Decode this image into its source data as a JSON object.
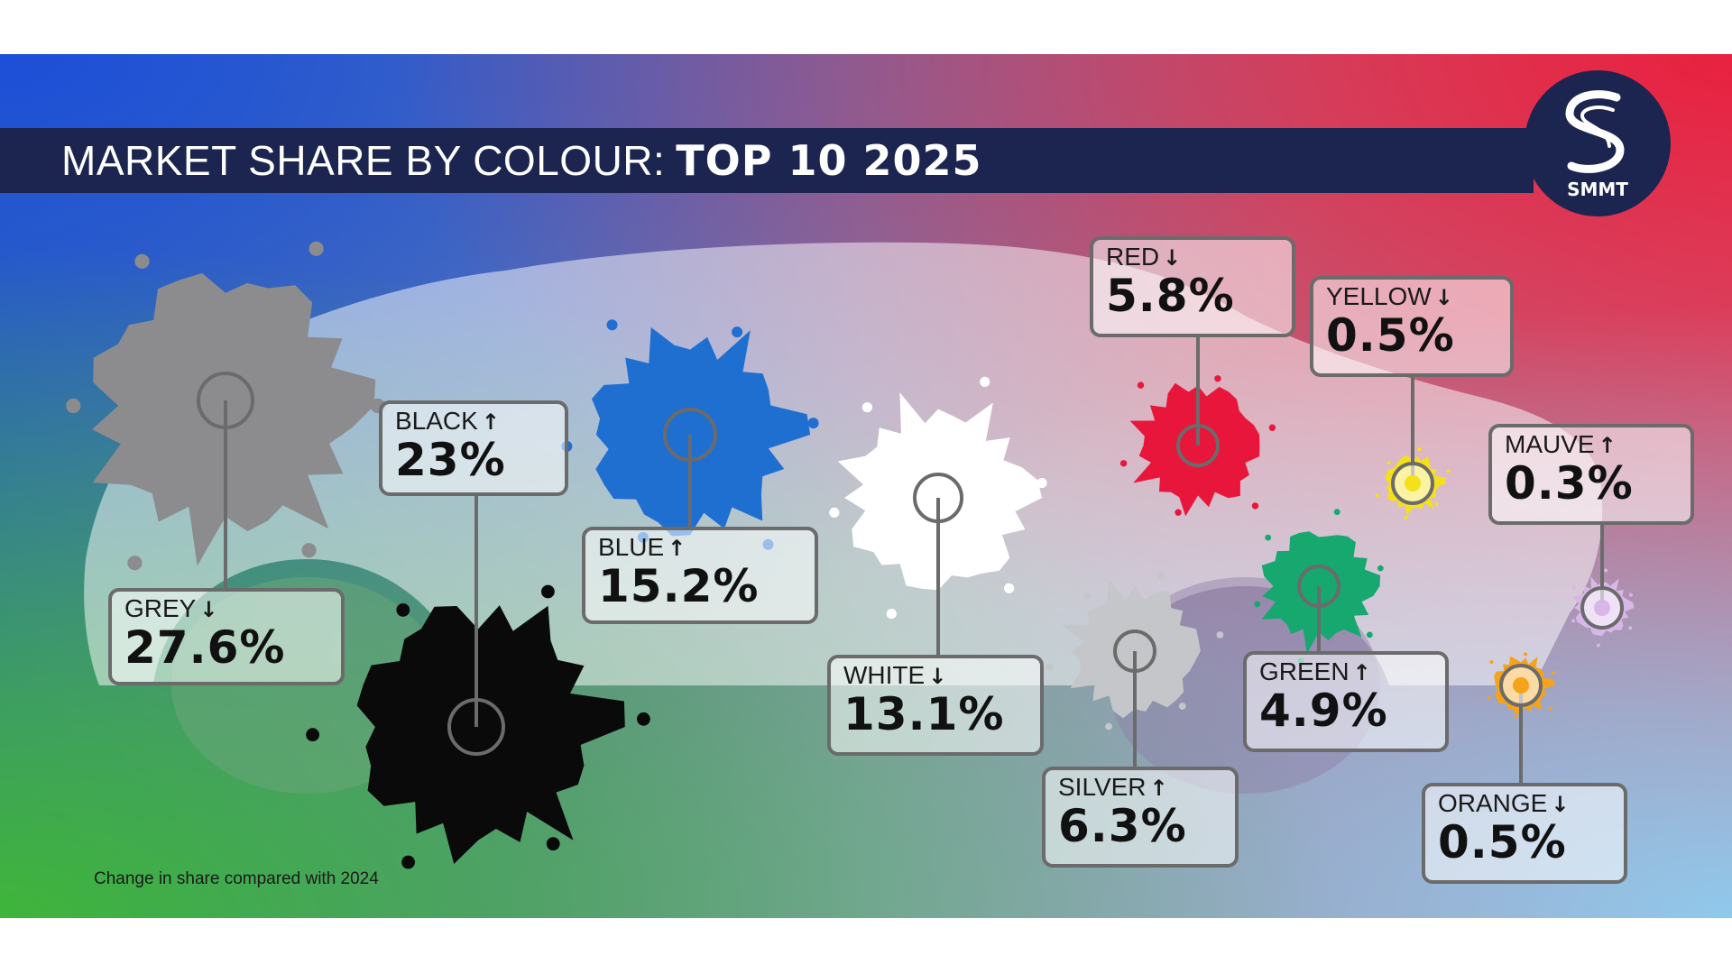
{
  "title": {
    "prefix": "MARKET SHARE BY COLOUR:",
    "emphasis": "TOP 10 2025"
  },
  "logo": {
    "text": "SMMT",
    "icon": "smmt-s-logo-icon"
  },
  "footnote": "Change in share compared with 2024",
  "colors": {
    "banner": "#1c2450",
    "connector": "#6b6b6b"
  },
  "chart_data": {
    "type": "infographic",
    "title": "MARKET SHARE BY COLOUR: TOP 10 2025",
    "unit": "%",
    "items": [
      {
        "name": "GREY",
        "value": 27.6,
        "display": "27.6%",
        "change": "down",
        "arrow": "↓",
        "color": "#8c8c8e"
      },
      {
        "name": "BLACK",
        "value": 23,
        "display": "23%",
        "change": "up",
        "arrow": "↑",
        "color": "#0a0a0a"
      },
      {
        "name": "BLUE",
        "value": 15.2,
        "display": "15.2%",
        "change": "up",
        "arrow": "↑",
        "color": "#1f6fd1"
      },
      {
        "name": "WHITE",
        "value": 13.1,
        "display": "13.1%",
        "change": "down",
        "arrow": "↓",
        "color": "#ffffff"
      },
      {
        "name": "SILVER",
        "value": 6.3,
        "display": "6.3%",
        "change": "up",
        "arrow": "↑",
        "color": "#c4c6c9"
      },
      {
        "name": "RED",
        "value": 5.8,
        "display": "5.8%",
        "change": "down",
        "arrow": "↓",
        "color": "#e8163a"
      },
      {
        "name": "GREEN",
        "value": 4.9,
        "display": "4.9%",
        "change": "up",
        "arrow": "↑",
        "color": "#17a86f"
      },
      {
        "name": "YELLOW",
        "value": 0.5,
        "display": "0.5%",
        "change": "down",
        "arrow": "↓",
        "color": "#f5e11a"
      },
      {
        "name": "ORANGE",
        "value": 0.5,
        "display": "0.5%",
        "change": "down",
        "arrow": "↓",
        "color": "#f5a31a"
      },
      {
        "name": "MAUVE",
        "value": 0.3,
        "display": "0.3%",
        "change": "up",
        "arrow": "↑",
        "color": "#d8b6e8"
      }
    ]
  }
}
